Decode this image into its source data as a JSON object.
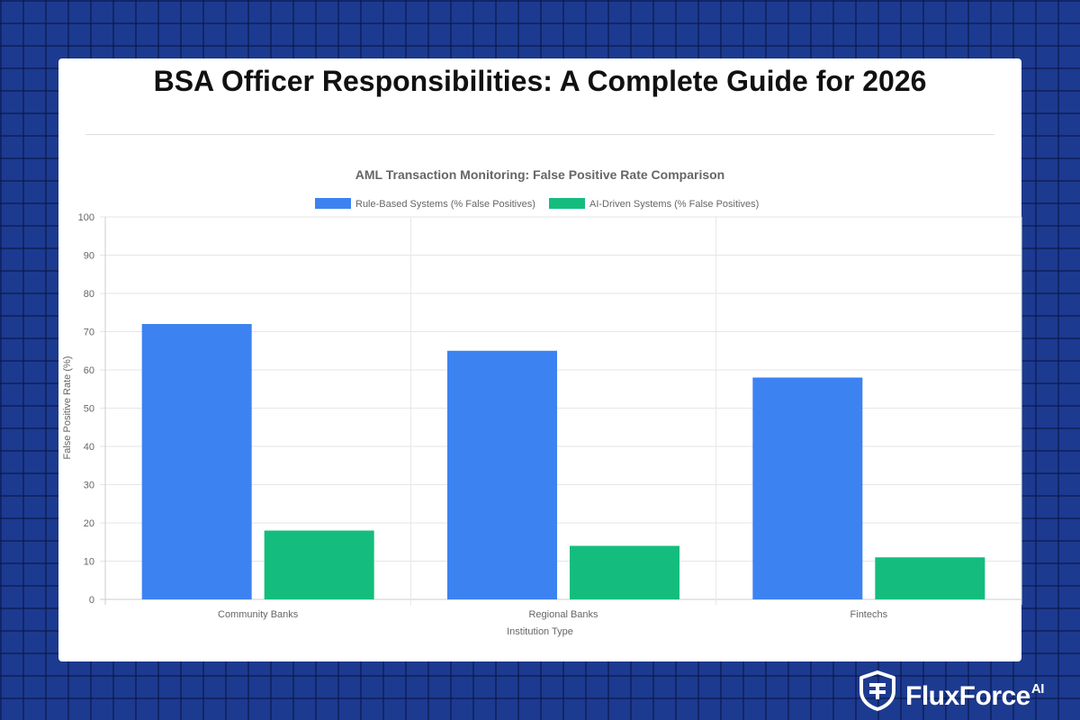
{
  "page": {
    "title": "BSA Officer Responsibilities: A Complete Guide for 2026",
    "brand": "FluxForce",
    "brand_suffix": "AI",
    "colors": {
      "background": "#1c3a8f",
      "card": "#ffffff"
    }
  },
  "chart_data": {
    "type": "bar",
    "title": "AML Transaction Monitoring: False Positive Rate Comparison",
    "categories": [
      "Community Banks",
      "Regional Banks",
      "Fintechs"
    ],
    "series": [
      {
        "name": "Rule-Based Systems (% False Positives)",
        "values": [
          72,
          65,
          58
        ],
        "color": "#3d82f1"
      },
      {
        "name": "AI-Driven Systems (% False Positives)",
        "values": [
          18,
          14,
          11
        ],
        "color": "#14bd7d"
      }
    ],
    "xlabel": "Institution Type",
    "ylabel": "False Positive Rate (%)",
    "ylim": [
      0,
      100
    ],
    "yticks": [
      "0",
      "10",
      "20",
      "30",
      "40",
      "50",
      "60",
      "70",
      "80",
      "90",
      "100"
    ],
    "grid": true,
    "legend": "top-center"
  }
}
